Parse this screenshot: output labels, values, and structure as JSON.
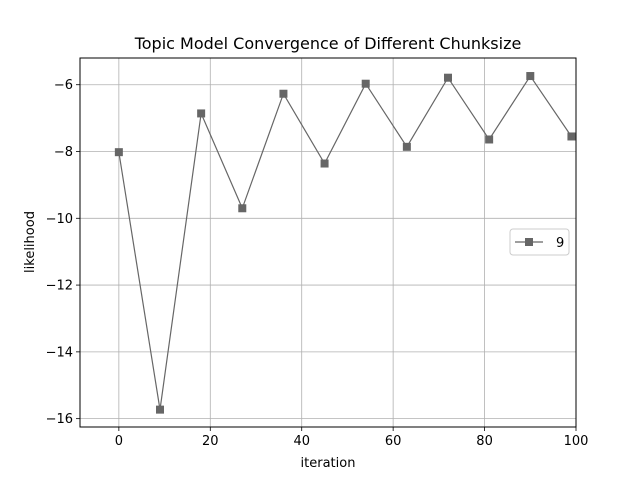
{
  "chart_data": {
    "type": "line",
    "title": "Topic Model Convergence of Different Chunksize",
    "xlabel": "iteration",
    "ylabel": "likelihood",
    "xlim": [
      -8.5,
      100
    ],
    "ylim": [
      -16.25,
      -5.2
    ],
    "xticks": [
      0,
      20,
      40,
      60,
      80,
      100
    ],
    "yticks": [
      -16,
      -14,
      -12,
      -10,
      -8,
      -6
    ],
    "xtick_labels": [
      "0",
      "20",
      "40",
      "60",
      "80",
      "100"
    ],
    "ytick_labels": [
      "−16",
      "−14",
      "−12",
      "−10",
      "−8",
      "−6"
    ],
    "grid": true,
    "legend_position": "center-right",
    "series": [
      {
        "name": "9",
        "color": "#666666",
        "marker": "square",
        "x": [
          0,
          9,
          18,
          27,
          36,
          45,
          54,
          63,
          72,
          81,
          90,
          99
        ],
        "y": [
          -8.02,
          -15.73,
          -6.86,
          -9.7,
          -6.27,
          -8.36,
          -5.97,
          -7.86,
          -5.79,
          -7.64,
          -5.74,
          -7.55
        ]
      }
    ]
  }
}
